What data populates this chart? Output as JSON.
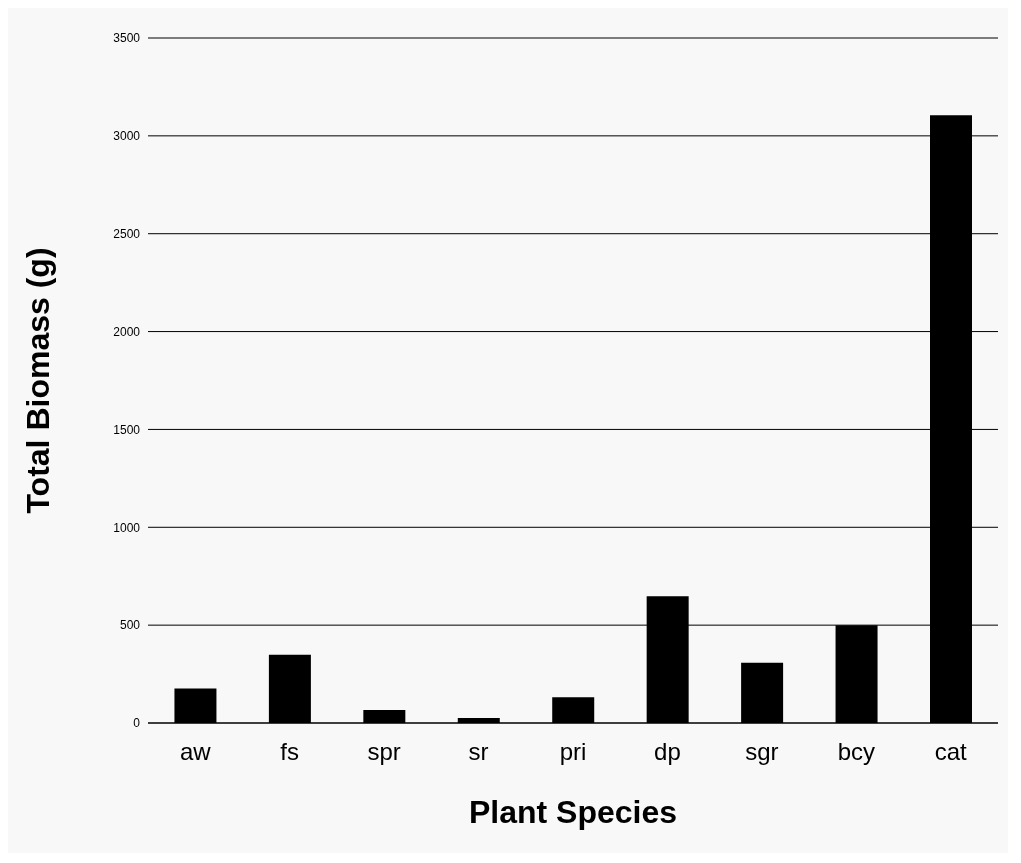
{
  "chart_data": {
    "type": "bar",
    "xlabel": "Plant Species",
    "ylabel": "Total Biomass (g)",
    "categories": [
      "aw",
      "fs",
      "spr",
      "sr",
      "pri",
      "dp",
      "sgr",
      "bcy",
      "cat"
    ],
    "values": [
      176,
      349,
      67,
      26,
      131,
      647,
      308,
      500,
      3105
    ],
    "color": "#000000",
    "ylim": [
      0,
      3500
    ],
    "yticks": [
      0,
      500,
      1000,
      1500,
      2000,
      2500,
      3000,
      3500
    ],
    "grid": "y"
  }
}
